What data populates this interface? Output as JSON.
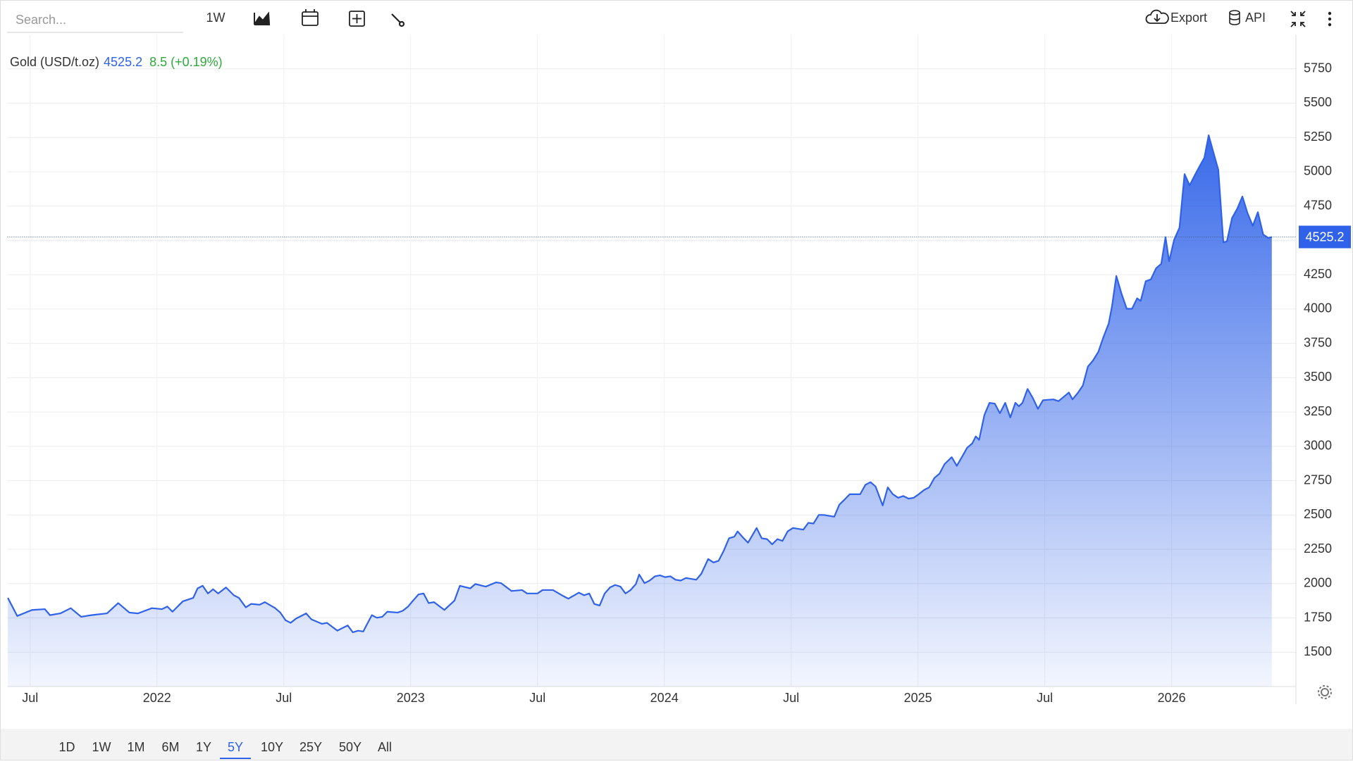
{
  "toolbar": {
    "search_placeholder": "Search...",
    "interval": "1W",
    "export": "Export",
    "api": "API"
  },
  "chart_data": {
    "type": "area",
    "legend_label": "Gold (USD/t.oz)",
    "change_label": "8.5 (+0.19%)",
    "xlim": [
      2021.41,
      2026.49
    ],
    "ylim": [
      1250,
      6000
    ],
    "grid": true,
    "xticks": [
      {
        "value": 2021.5,
        "label": "Jul"
      },
      2022,
      {
        "value": 2022.5,
        "label": "Jul"
      },
      2023,
      {
        "value": 2023.5,
        "label": "Jul"
      },
      2024,
      {
        "value": 2024.5,
        "label": "Jul"
      },
      2025,
      {
        "value": 2025.5,
        "label": "Jul"
      },
      2026
    ],
    "yticks": [
      1500,
      1750,
      2000,
      2250,
      2500,
      2750,
      3000,
      3250,
      3500,
      3750,
      4000,
      4250,
      4500,
      4750,
      5000,
      5250,
      5500,
      5750
    ],
    "x": [
      2021.412,
      2021.449,
      2021.507,
      2021.558,
      2021.578,
      2021.619,
      2021.66,
      2021.701,
      2021.741,
      2021.803,
      2021.847,
      2021.891,
      2021.925,
      2021.98,
      2022.02,
      2022.041,
      2022.061,
      2022.102,
      2022.143,
      2022.16,
      2022.18,
      2022.201,
      2022.221,
      2022.241,
      2022.272,
      2022.303,
      2022.323,
      2022.35,
      2022.371,
      2022.405,
      2022.425,
      2022.466,
      2022.486,
      2022.507,
      2022.527,
      2022.548,
      2022.588,
      2022.609,
      2022.65,
      2022.67,
      2022.711,
      2022.731,
      2022.752,
      2022.772,
      2022.793,
      2022.813,
      2022.847,
      2022.867,
      2022.888,
      2022.908,
      2022.949,
      2022.969,
      2022.99,
      2023.01,
      2023.031,
      2023.051,
      2023.071,
      2023.092,
      2023.133,
      2023.173,
      2023.194,
      2023.235,
      2023.255,
      2023.296,
      2023.337,
      2023.357,
      2023.398,
      2023.439,
      2023.459,
      2023.5,
      2023.52,
      2023.561,
      2023.602,
      2023.622,
      2023.663,
      2023.684,
      2023.704,
      2023.724,
      2023.745,
      2023.765,
      2023.786,
      2023.806,
      2023.827,
      2023.847,
      2023.867,
      2023.888,
      2023.901,
      2023.922,
      2023.942,
      2023.963,
      2023.983,
      2024.003,
      2024.024,
      2024.044,
      2024.065,
      2024.085,
      2024.126,
      2024.146,
      2024.173,
      2024.194,
      2024.214,
      2024.235,
      2024.255,
      2024.276,
      2024.289,
      2024.31,
      2024.33,
      2024.35,
      2024.364,
      2024.384,
      2024.405,
      2024.425,
      2024.446,
      2024.466,
      2024.486,
      2024.507,
      2024.548,
      2024.568,
      2024.588,
      2024.609,
      2024.629,
      2024.67,
      2024.69,
      2024.711,
      2024.731,
      2024.772,
      2024.793,
      2024.813,
      2024.833,
      2024.861,
      2024.881,
      2024.901,
      2024.922,
      2024.942,
      2024.963,
      2024.983,
      2025.003,
      2025.024,
      2025.044,
      2025.065,
      2025.085,
      2025.105,
      2025.133,
      2025.153,
      2025.173,
      2025.194,
      2025.214,
      2025.228,
      2025.241,
      2025.262,
      2025.282,
      2025.303,
      2025.323,
      2025.344,
      2025.364,
      2025.384,
      2025.398,
      2025.412,
      2025.432,
      2025.452,
      2025.473,
      2025.493,
      2025.534,
      2025.554,
      2025.595,
      2025.609,
      2025.629,
      2025.65,
      2025.67,
      2025.69,
      2025.711,
      2025.731,
      2025.752,
      2025.765,
      2025.782,
      2025.803,
      2025.823,
      2025.844,
      2025.864,
      2025.878,
      2025.898,
      2025.918,
      2025.939,
      2025.959,
      2025.976,
      2025.99,
      2026.01,
      2026.031,
      2026.051,
      2026.071,
      2026.092,
      2026.112,
      2026.129,
      2026.146,
      2026.163,
      2026.184,
      2026.204,
      2026.218,
      2026.238,
      2026.259,
      2026.279,
      2026.299,
      2026.32,
      2026.34,
      2026.361,
      2026.381,
      2026.395
    ],
    "series": [
      {
        "name": "Gold (USD/t.oz)",
        "color": "#2f62e8",
        "values": [
          1896,
          1764,
          1808,
          1814,
          1770,
          1783,
          1821,
          1758,
          1770,
          1783,
          1858,
          1789,
          1783,
          1821,
          1814,
          1833,
          1795,
          1871,
          1896,
          1965,
          1984,
          1928,
          1959,
          1928,
          1972,
          1915,
          1896,
          1827,
          1852,
          1846,
          1865,
          1821,
          1789,
          1733,
          1714,
          1745,
          1783,
          1739,
          1707,
          1714,
          1657,
          1676,
          1695,
          1645,
          1657,
          1651,
          1770,
          1751,
          1758,
          1795,
          1789,
          1802,
          1833,
          1877,
          1921,
          1928,
          1858,
          1865,
          1808,
          1877,
          1984,
          1965,
          1997,
          1978,
          2009,
          2003,
          1946,
          1953,
          1928,
          1928,
          1953,
          1953,
          1909,
          1890,
          1934,
          1915,
          1928,
          1852,
          1840,
          1928,
          1972,
          1990,
          1978,
          1928,
          1953,
          1997,
          2066,
          2003,
          2022,
          2053,
          2060,
          2047,
          2053,
          2028,
          2022,
          2041,
          2028,
          2072,
          2179,
          2154,
          2166,
          2242,
          2330,
          2342,
          2380,
          2336,
          2298,
          2361,
          2405,
          2330,
          2324,
          2286,
          2324,
          2311,
          2380,
          2405,
          2393,
          2443,
          2437,
          2500,
          2500,
          2487,
          2575,
          2613,
          2651,
          2651,
          2720,
          2739,
          2707,
          2569,
          2701,
          2651,
          2625,
          2638,
          2619,
          2625,
          2651,
          2682,
          2701,
          2770,
          2801,
          2871,
          2921,
          2858,
          2921,
          2990,
          3021,
          3072,
          3047,
          3229,
          3317,
          3311,
          3241,
          3317,
          3210,
          3317,
          3292,
          3317,
          3418,
          3355,
          3273,
          3336,
          3342,
          3329,
          3392,
          3342,
          3386,
          3443,
          3581,
          3625,
          3688,
          3795,
          3895,
          4021,
          4241,
          4109,
          4002,
          4002,
          4078,
          4059,
          4203,
          4216,
          4298,
          4329,
          4524,
          4348,
          4505,
          4593,
          4983,
          4901,
          4977,
          5046,
          5102,
          5266,
          5153,
          5014,
          4486,
          4493,
          4662,
          4732,
          4820,
          4700,
          4606,
          4706,
          4543,
          4518,
          4525.2
        ]
      }
    ]
  },
  "range_bar": {
    "buttons": [
      "1D",
      "1W",
      "1M",
      "6M",
      "1Y",
      "5Y",
      "10Y",
      "25Y",
      "50Y",
      "All"
    ],
    "active": "5Y"
  }
}
